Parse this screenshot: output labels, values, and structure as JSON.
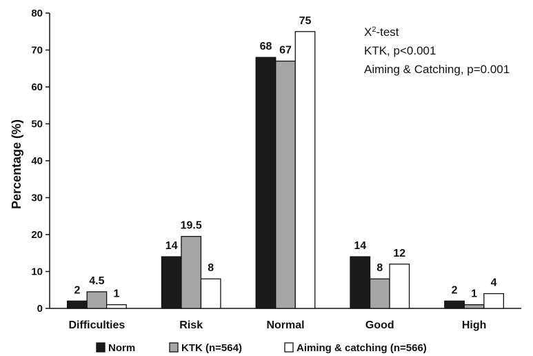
{
  "chart_data": {
    "type": "bar",
    "categories": [
      "Difficulties",
      "Risk",
      "Normal",
      "Good",
      "High"
    ],
    "series": [
      {
        "name": "Norm",
        "values": [
          2,
          14,
          68,
          14,
          2
        ],
        "color": "#1a1a1a"
      },
      {
        "name": "KTK (n=564)",
        "values": [
          4.5,
          19.5,
          67,
          8,
          1
        ],
        "color": "#a6a6a6"
      },
      {
        "name": "Aiming & catching (n=566)",
        "values": [
          1,
          8,
          75,
          12,
          4
        ],
        "color": "#ffffff"
      }
    ],
    "data_labels": [
      [
        "2",
        "14",
        "68",
        "14",
        "2"
      ],
      [
        "4.5",
        "19.5",
        "67",
        "8",
        "1"
      ],
      [
        "1",
        "8",
        "75",
        "12",
        "4"
      ]
    ],
    "ylabel": "Percentage (%)",
    "xlabel": "",
    "ylim": [
      0,
      80
    ],
    "yticks": [
      0,
      10,
      20,
      30,
      40,
      50,
      60,
      70,
      80
    ],
    "grid": false,
    "legend_position": "bottom",
    "annotation": {
      "line1_base": "X",
      "line1_sup": "2",
      "line1_rest": "-test",
      "line2": "KTK, p<0.001",
      "line3": "Aiming & Catching, p=0.001"
    }
  }
}
